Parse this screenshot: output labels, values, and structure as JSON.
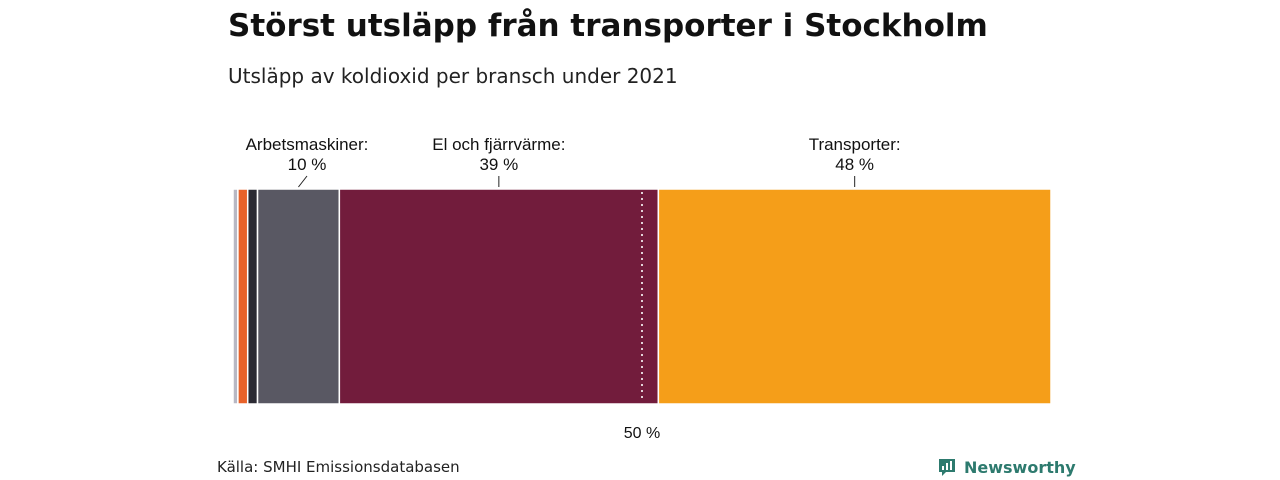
{
  "header": {
    "title": "Störst utsläpp från transporter i Stockholm",
    "subtitle": "Utsläpp av koldioxid per bransch under 2021"
  },
  "chart_data": {
    "type": "bar",
    "orientation": "horizontal-stacked",
    "unit": "%",
    "xlim": [
      0,
      100
    ],
    "segments": [
      {
        "value": 0.6,
        "color": "#b8b8c4",
        "label": "",
        "value_label": ""
      },
      {
        "value": 1.2,
        "color": "#e8622a",
        "label": "",
        "value_label": ""
      },
      {
        "value": 1.2,
        "color": "#2b2a33",
        "label": "",
        "value_label": ""
      },
      {
        "value": 10,
        "color": "#595863",
        "label": "Arbetsmaskiner:",
        "value_label": "10 %"
      },
      {
        "value": 39,
        "color": "#721c3c",
        "label": "El och fjärrvärme:",
        "value_label": "39 %"
      },
      {
        "value": 48,
        "color": "#f59e19",
        "label": "Transporter:",
        "value_label": "48 %"
      }
    ],
    "reference_line": {
      "value": 50,
      "label": "50 %"
    }
  },
  "footer": {
    "source": "Källa: SMHI Emissionsdatabasen",
    "brand": "Newsworthy",
    "brand_color": "#2d7a6e"
  }
}
